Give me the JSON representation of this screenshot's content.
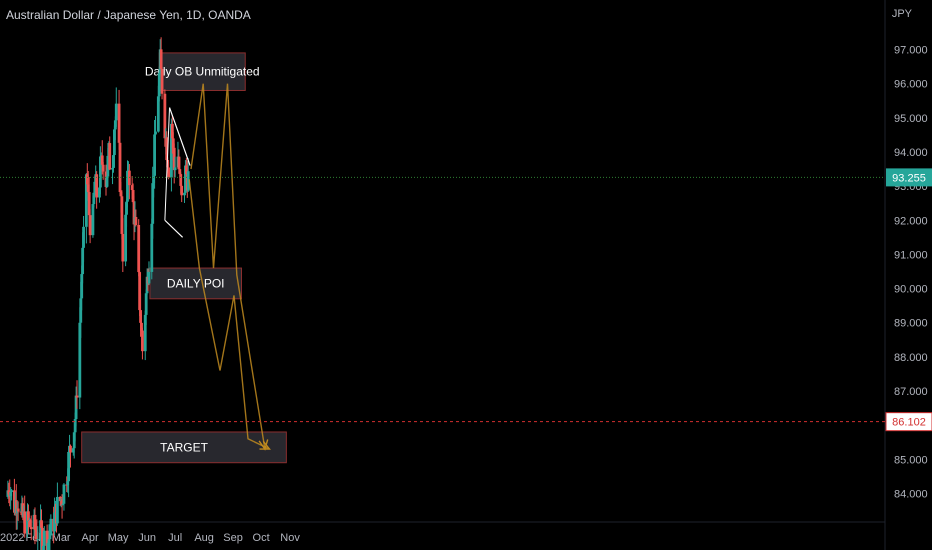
{
  "header": {
    "title": "Australian Dollar / Japanese Yen, 1D, OANDA",
    "currency": "JPY"
  },
  "colors": {
    "background": "#000000",
    "up": "#26a69a",
    "down": "#ef5350",
    "axis_text": "#b2b5be",
    "zone_fill": "#2a2a30",
    "zone_border": "#8b2e2e",
    "projection": "#c08a1e",
    "price_line": "#2e7d32",
    "target_line": "#d32f2f"
  },
  "chart_data": {
    "type": "candlestick",
    "symbol": "AUDJPY",
    "timeframe": "1D",
    "ylim": [
      83.1,
      98.6
    ],
    "yticks": [
      84,
      85,
      86,
      87,
      88,
      89,
      90,
      91,
      92,
      93,
      94,
      95,
      96,
      97
    ],
    "ytick_labels": [
      "84.000",
      "85.000",
      "86.000",
      "87.000",
      "88.000",
      "89.000",
      "90.000",
      "91.000",
      "92.000",
      "93.000",
      "94.000",
      "95.000",
      "96.000",
      "97.000"
    ],
    "xticks": [
      {
        "label": "2022",
        "x": "2022-01-01"
      },
      {
        "label": "Feb",
        "x": "2022-02-01"
      },
      {
        "label": "Mar",
        "x": "2022-03-01"
      },
      {
        "label": "Apr",
        "x": "2022-04-01"
      },
      {
        "label": "May",
        "x": "2022-05-01"
      },
      {
        "label": "Jun",
        "x": "2022-06-01"
      },
      {
        "label": "Jul",
        "x": "2022-07-01"
      },
      {
        "label": "Aug",
        "x": "2022-08-01"
      },
      {
        "label": "Sep",
        "x": "2022-09-01"
      },
      {
        "label": "Oct",
        "x": "2022-10-01"
      },
      {
        "label": "Nov",
        "x": "2022-11-01"
      }
    ],
    "last_price": {
      "value": 93.255,
      "label": "93.255"
    },
    "target_level": {
      "value": 86.102,
      "label": "86.102"
    },
    "price_path": [
      [
        "2022-01-01",
        83.9
      ],
      [
        "2022-01-05",
        84.3
      ],
      [
        "2022-01-09",
        83.6
      ],
      [
        "2022-01-13",
        83.9
      ],
      [
        "2022-01-17",
        83.3
      ],
      [
        "2022-02-15",
        82.6
      ],
      [
        "2022-02-25",
        83.6
      ],
      [
        "2022-03-02",
        83.9
      ],
      [
        "2022-03-06",
        84.4
      ],
      [
        "2022-03-10",
        85.2
      ],
      [
        "2022-03-14",
        85.7
      ],
      [
        "2022-03-17",
        86.5
      ],
      [
        "2022-03-19",
        87.8
      ],
      [
        "2022-03-21",
        89.0
      ],
      [
        "2022-03-23",
        90.5
      ],
      [
        "2022-03-26",
        91.8
      ],
      [
        "2022-03-28",
        93.4
      ],
      [
        "2022-03-31",
        92.2
      ],
      [
        "2022-04-03",
        91.5
      ],
      [
        "2022-04-06",
        93.1
      ],
      [
        "2022-04-09",
        92.6
      ],
      [
        "2022-04-12",
        93.5
      ],
      [
        "2022-04-15",
        93.8
      ],
      [
        "2022-04-18",
        93.2
      ],
      [
        "2022-04-21",
        93.9
      ],
      [
        "2022-04-24",
        93.4
      ],
      [
        "2022-04-27",
        94.8
      ],
      [
        "2022-04-30",
        95.2
      ],
      [
        "2022-05-03",
        93.2
      ],
      [
        "2022-05-06",
        91.1
      ],
      [
        "2022-05-09",
        91.9
      ],
      [
        "2022-05-12",
        93.6
      ],
      [
        "2022-05-15",
        92.9
      ],
      [
        "2022-05-18",
        92.2
      ],
      [
        "2022-05-21",
        91.2
      ],
      [
        "2022-05-24",
        89.6
      ],
      [
        "2022-05-27",
        88.2
      ],
      [
        "2022-05-30",
        89.4
      ],
      [
        "2022-06-02",
        90.6
      ],
      [
        "2022-06-05",
        91.6
      ],
      [
        "2022-06-08",
        93.6
      ],
      [
        "2022-06-11",
        95.0
      ],
      [
        "2022-06-15",
        96.6
      ],
      [
        "2022-06-18",
        95.6
      ],
      [
        "2022-06-21",
        94.4
      ],
      [
        "2022-06-24",
        93.6
      ],
      [
        "2022-06-27",
        94.9
      ],
      [
        "2022-06-30",
        93.5
      ],
      [
        "2022-07-03",
        94.3
      ],
      [
        "2022-07-06",
        93.1
      ],
      [
        "2022-07-09",
        92.2
      ],
      [
        "2022-07-12",
        93.4
      ],
      [
        "2022-07-15",
        93.255
      ]
    ],
    "zones": [
      {
        "label": "Daily OB Unmitigated",
        "x0": "2022-06-14",
        "x1": "2022-09-14",
        "y0": 95.8,
        "y1": 96.9
      },
      {
        "label": "DAILY POI",
        "x0": "2022-06-04",
        "x1": "2022-09-10",
        "y0": 89.7,
        "y1": 90.6
      },
      {
        "label": "TARGET",
        "x0": "2022-03-23",
        "x1": "2022-10-28",
        "y0": 84.9,
        "y1": 85.8
      }
    ],
    "wedge": [
      {
        "x1": "2022-06-25",
        "y1": 95.3,
        "x2": "2022-07-17",
        "y2": 93.6
      },
      {
        "x1": "2022-06-20",
        "y1": 92.0,
        "x2": "2022-07-09",
        "y2": 91.5
      }
    ],
    "projections": [
      [
        [
          "2022-07-18",
          93.5
        ],
        [
          "2022-07-31",
          96.0
        ],
        [
          "2022-08-11",
          90.6
        ],
        [
          "2022-08-26",
          96.0
        ],
        [
          "2022-09-05",
          90.4
        ],
        [
          "2022-10-05",
          85.3
        ]
      ],
      [
        [
          "2022-07-16",
          93.2
        ],
        [
          "2022-07-27",
          90.6
        ],
        [
          "2022-08-18",
          87.6
        ],
        [
          "2022-09-02",
          89.8
        ],
        [
          "2022-09-17",
          85.6
        ],
        [
          "2022-10-10",
          85.3
        ]
      ]
    ]
  }
}
